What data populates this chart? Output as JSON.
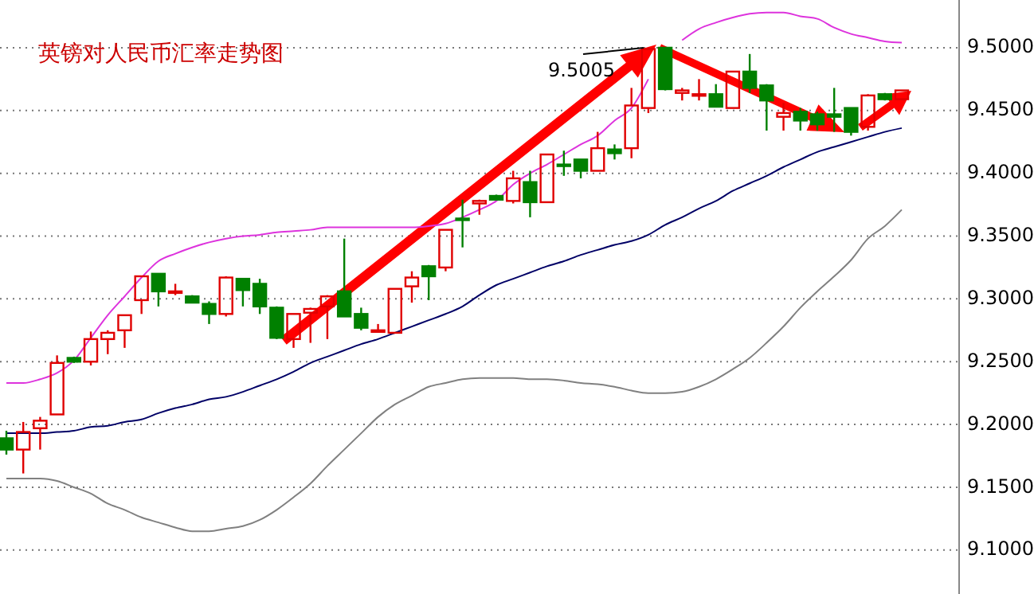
{
  "chart_data": {
    "type": "candlestick",
    "title": "英镑对人民币汇率走势图",
    "categories": [
      null,
      null,
      null,
      null,
      null,
      null,
      null,
      null,
      null,
      null,
      null,
      null,
      null,
      null,
      null,
      null,
      null,
      null,
      null,
      null,
      null,
      null,
      null,
      null,
      null,
      null,
      null,
      null,
      null,
      null,
      null,
      null,
      null,
      null,
      null,
      null,
      null,
      null,
      null,
      null,
      null,
      null,
      null,
      null,
      null,
      null,
      null,
      null,
      null,
      null,
      null,
      null,
      null,
      null
    ],
    "ohlc": [
      [
        9.189,
        9.195,
        9.176,
        9.18
      ],
      [
        9.18,
        9.202,
        9.161,
        9.194
      ],
      [
        9.197,
        9.206,
        9.18,
        9.203
      ],
      [
        9.208,
        9.255,
        9.208,
        9.249
      ],
      [
        9.253,
        9.254,
        9.249,
        9.25
      ],
      [
        9.25,
        9.274,
        9.247,
        9.268
      ],
      [
        9.268,
        9.275,
        9.256,
        9.273
      ],
      [
        9.275,
        9.287,
        9.261,
        9.287
      ],
      [
        9.299,
        9.318,
        9.288,
        9.318
      ],
      [
        9.32,
        9.32,
        9.294,
        9.306
      ],
      [
        9.305,
        9.312,
        9.303,
        9.306
      ],
      [
        9.302,
        9.303,
        9.297,
        9.297
      ],
      [
        9.296,
        9.298,
        9.28,
        9.288
      ],
      [
        9.288,
        9.318,
        9.286,
        9.317
      ],
      [
        9.316,
        9.316,
        9.294,
        9.307
      ],
      [
        9.312,
        9.316,
        9.288,
        9.294
      ],
      [
        9.293,
        9.294,
        9.268,
        9.269
      ],
      [
        9.268,
        9.288,
        9.261,
        9.288
      ],
      [
        9.289,
        9.293,
        9.265,
        9.292
      ],
      [
        9.294,
        9.303,
        9.268,
        9.302
      ],
      [
        9.306,
        9.348,
        9.286,
        9.286
      ],
      [
        9.288,
        9.293,
        9.275,
        9.277
      ],
      [
        9.274,
        9.28,
        9.274,
        9.275
      ],
      [
        9.273,
        9.308,
        9.273,
        9.308
      ],
      [
        9.31,
        9.322,
        9.297,
        9.317
      ],
      [
        9.326,
        9.327,
        9.299,
        9.318
      ],
      [
        9.325,
        9.355,
        9.322,
        9.355
      ],
      [
        9.364,
        9.379,
        9.341,
        9.363
      ],
      [
        9.376,
        9.379,
        9.367,
        9.378
      ],
      [
        9.382,
        9.383,
        9.379,
        9.379
      ],
      [
        9.378,
        9.402,
        9.376,
        9.396
      ],
      [
        9.393,
        9.402,
        9.365,
        9.377
      ],
      [
        9.377,
        9.415,
        9.377,
        9.415
      ],
      [
        9.407,
        9.418,
        9.398,
        9.406
      ],
      [
        9.411,
        9.411,
        9.396,
        9.402
      ],
      [
        9.402,
        9.433,
        9.402,
        9.42
      ],
      [
        9.419,
        9.423,
        9.411,
        9.416
      ],
      [
        9.42,
        9.468,
        9.412,
        9.454
      ],
      [
        9.452,
        9.5,
        9.448,
        9.499
      ],
      [
        9.5,
        9.5005,
        9.466,
        9.467
      ],
      [
        9.464,
        9.468,
        9.458,
        9.466
      ],
      [
        9.462,
        9.475,
        9.458,
        9.463
      ],
      [
        9.463,
        9.471,
        9.453,
        9.453
      ],
      [
        9.452,
        9.481,
        9.452,
        9.481
      ],
      [
        9.481,
        9.495,
        9.464,
        9.468
      ],
      [
        9.47,
        9.471,
        9.434,
        9.458
      ],
      [
        9.445,
        9.456,
        9.434,
        9.448
      ],
      [
        9.449,
        9.452,
        9.434,
        9.442
      ],
      [
        9.447,
        9.449,
        9.434,
        9.439
      ],
      [
        9.447,
        9.468,
        9.433,
        9.445
      ],
      [
        9.452,
        9.452,
        9.43,
        9.433
      ],
      [
        9.437,
        9.463,
        9.434,
        9.462
      ],
      [
        9.463,
        9.464,
        9.458,
        9.459
      ],
      [
        9.459,
        9.466,
        9.459,
        9.466
      ]
    ],
    "colors": [
      "#008000",
      "#e00000",
      "#e00000",
      "#e00000",
      "#008000",
      "#e00000",
      "#e00000",
      "#e00000",
      "#e00000",
      "#008000",
      "#e00000",
      "#008000",
      "#008000",
      "#e00000",
      "#008000",
      "#008000",
      "#008000",
      "#e00000",
      "#e00000",
      "#e00000",
      "#008000",
      "#008000",
      "#e00000",
      "#e00000",
      "#e00000",
      "#008000",
      "#e00000",
      "#008000",
      "#e00000",
      "#008000",
      "#e00000",
      "#008000",
      "#e00000",
      "#008000",
      "#008000",
      "#e00000",
      "#008000",
      "#e00000",
      "#e00000",
      "#008000",
      "#e00000",
      "#e00000",
      "#008000",
      "#e00000",
      "#008000",
      "#008000",
      "#e00000",
      "#008000",
      "#008000",
      "#008000",
      "#008000",
      "#e00000",
      "#008000",
      "#e00000"
    ],
    "series": [
      {
        "type": "line",
        "color": "#dd33dd",
        "values": [
          9.233,
          9.233,
          9.236,
          9.241,
          9.251,
          9.269,
          9.287,
          9.302,
          9.317,
          9.33,
          9.336,
          9.341,
          9.345,
          9.348,
          9.35,
          9.351,
          9.353,
          9.354,
          9.355,
          9.357,
          9.357,
          9.357,
          9.357,
          9.357,
          9.357,
          9.358,
          9.36,
          9.365,
          9.371,
          9.378,
          9.391,
          9.4,
          9.407,
          9.415,
          9.423,
          9.43,
          9.442,
          9.452,
          9.475,
          null,
          9.506,
          9.515,
          9.52,
          9.524,
          9.527,
          9.528,
          9.528,
          9.525,
          9.523,
          9.516,
          9.511,
          9.508,
          9.505,
          9.504
        ]
      },
      {
        "type": "line",
        "color": "#000066",
        "values": [
          9.193,
          9.193,
          9.193,
          9.194,
          9.195,
          9.198,
          9.199,
          9.202,
          9.204,
          9.209,
          9.213,
          9.216,
          9.22,
          9.222,
          9.226,
          9.231,
          9.236,
          9.242,
          9.249,
          9.254,
          9.259,
          9.264,
          9.268,
          9.273,
          9.278,
          9.283,
          9.288,
          9.294,
          9.303,
          9.311,
          9.316,
          9.321,
          9.326,
          9.33,
          9.335,
          9.339,
          9.343,
          9.346,
          9.351,
          9.359,
          9.365,
          9.372,
          9.378,
          9.386,
          9.392,
          9.398,
          9.405,
          9.411,
          9.417,
          9.421,
          9.425,
          9.429,
          9.433,
          9.436
        ]
      },
      {
        "type": "line",
        "color": "#808080",
        "values": [
          9.157,
          9.157,
          9.157,
          9.155,
          9.15,
          9.145,
          9.137,
          9.132,
          9.126,
          9.122,
          9.118,
          9.115,
          9.115,
          9.117,
          9.119,
          9.124,
          9.132,
          9.142,
          9.153,
          9.167,
          9.18,
          9.193,
          9.206,
          9.216,
          9.223,
          9.23,
          9.233,
          9.236,
          9.237,
          9.237,
          9.237,
          9.236,
          9.236,
          9.235,
          9.233,
          9.232,
          9.23,
          9.227,
          9.225,
          9.225,
          9.226,
          9.23,
          9.236,
          9.244,
          9.253,
          9.265,
          9.278,
          9.293,
          9.306,
          9.318,
          9.331,
          9.348,
          9.358,
          9.371
        ]
      }
    ],
    "ylim": [
      9.065,
      9.538
    ],
    "yticks": [
      {
        "value": 9.1,
        "label": "9.1000"
      },
      {
        "value": 9.15,
        "label": "9.1500"
      },
      {
        "value": 9.2,
        "label": "9.2000"
      },
      {
        "value": 9.25,
        "label": "9.2500"
      },
      {
        "value": 9.3,
        "label": "9.3000"
      },
      {
        "value": 9.35,
        "label": "9.3500"
      },
      {
        "value": 9.4,
        "label": "9.4000"
      },
      {
        "value": 9.45,
        "label": "9.4500"
      },
      {
        "value": 9.5,
        "label": "9.5000"
      }
    ],
    "grid": "y",
    "tick_labels": "y",
    "annotations": [
      "9.5005"
    ]
  }
}
